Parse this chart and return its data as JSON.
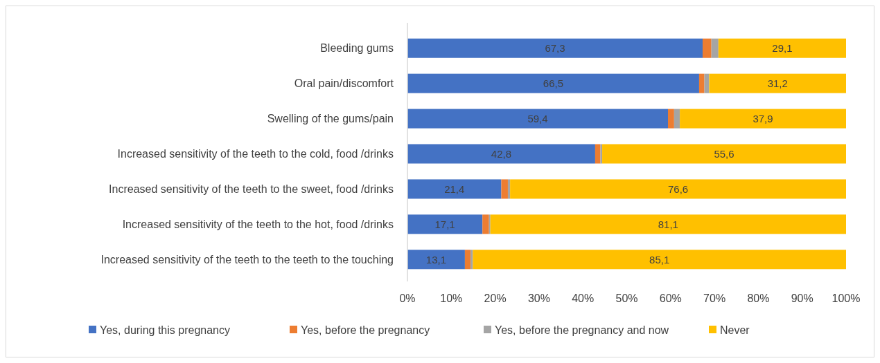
{
  "chart_data": {
    "type": "bar",
    "orientation": "horizontal",
    "stacked": true,
    "categories": [
      "Bleeding gums",
      "Oral pain/discomfort",
      "Swelling of the gums/pain ",
      "Increased sensitivity of the teeth to the cold, food /drinks",
      "Increased sensitivity of the teeth to the sweet, food /drinks",
      "Increased sensitivity of the teeth to the hot, food /drinks",
      "Increased sensitivity of the teeth to the teeth to the touching"
    ],
    "series": [
      {
        "name": "Yes, during this pregnancy",
        "color": "#4472c4",
        "values": [
          67.3,
          66.5,
          59.4,
          42.8,
          21.4,
          17.1,
          13.1
        ],
        "value_labels": [
          "67,3",
          "66,5",
          "59,4",
          "42,8",
          "21,4",
          "17,1",
          "13,1"
        ]
      },
      {
        "name": "Yes, before the  pregnancy",
        "color": "#ed7d31",
        "values": [
          2.0,
          1.2,
          1.4,
          1.2,
          1.5,
          1.5,
          1.3
        ]
      },
      {
        "name": "Yes, before the pregnancy and now",
        "color": "#a5a5a5",
        "values": [
          1.6,
          1.1,
          1.3,
          0.4,
          0.5,
          0.3,
          0.5
        ]
      },
      {
        "name": "Never",
        "color": "#ffc000",
        "values": [
          29.1,
          31.2,
          37.9,
          55.6,
          76.6,
          81.1,
          85.1
        ],
        "value_labels": [
          "29,1",
          "31,2",
          "37,9",
          "55,6",
          "76,6",
          "81,1",
          "85,1"
        ]
      }
    ],
    "xlim": [
      0,
      100
    ],
    "xticks": [
      {
        "value": 0,
        "label": "0%"
      },
      {
        "value": 10,
        "label": "10%"
      },
      {
        "value": 20,
        "label": "20%"
      },
      {
        "value": 30,
        "label": "30%"
      },
      {
        "value": 40,
        "label": "40%"
      },
      {
        "value": 50,
        "label": "50%"
      },
      {
        "value": 60,
        "label": "60%"
      },
      {
        "value": 70,
        "label": "70%"
      },
      {
        "value": 80,
        "label": "80%"
      },
      {
        "value": 90,
        "label": "90%"
      },
      {
        "value": 100,
        "label": "100%"
      }
    ],
    "legend": "bottom"
  }
}
